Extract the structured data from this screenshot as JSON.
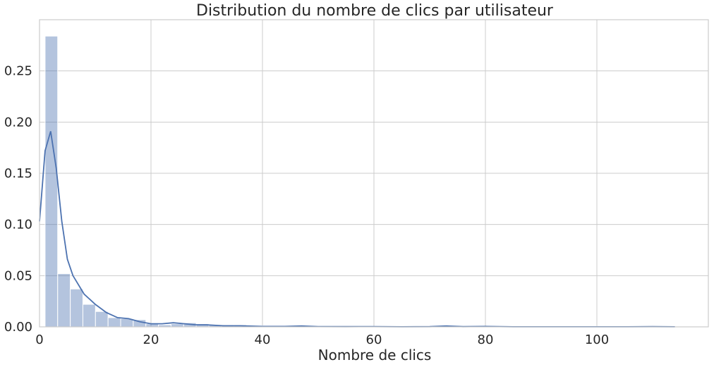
{
  "chart_data": {
    "type": "bar",
    "title": "Distribution du nombre de clics par utilisateur",
    "xlabel": "Nombre de clics",
    "ylabel": "",
    "xlim": [
      0,
      120
    ],
    "ylim": [
      0,
      0.3
    ],
    "x_ticks": [
      "0",
      "20",
      "40",
      "60",
      "80",
      "100"
    ],
    "y_ticks": [
      "0.00",
      "0.05",
      "0.10",
      "0.15",
      "0.20",
      "0.25"
    ],
    "grid": true,
    "legend": "none",
    "bar_color": "#4C72B0",
    "line_color": "#4C72B0",
    "histogram": {
      "bin_start": 1,
      "bin_width": 2.26,
      "values": [
        0.284,
        0.052,
        0.037,
        0.022,
        0.015,
        0.009,
        0.008,
        0.007,
        0.003,
        0.002,
        0.003,
        0.004,
        0.003,
        0.002,
        0.002,
        0.002,
        0.001,
        0.001,
        0.001,
        0.001,
        0.001,
        0.001,
        0.001,
        0.001,
        0.0005,
        0.0005,
        0.0005,
        0.0005,
        0.0005,
        0.0005,
        0.0005,
        0.0005,
        0.0005,
        0.001,
        0.0005,
        0.0005,
        0.0005,
        0.0005,
        0.0005,
        0.0005,
        0.0005,
        0.0005,
        0.0005,
        0.0005,
        0.0005,
        0.0005,
        0.0005,
        0.0005,
        0.0005,
        0.0005
      ]
    },
    "kde": {
      "x": [
        0,
        1,
        2,
        3,
        4,
        5,
        6,
        8,
        10,
        12,
        14,
        16,
        18,
        20,
        22,
        24,
        26,
        28,
        30,
        33,
        36,
        40,
        44,
        47,
        50,
        55,
        60,
        65,
        70,
        73,
        76,
        80,
        85,
        90,
        95,
        100,
        105,
        110,
        114
      ],
      "y": [
        0.103,
        0.172,
        0.191,
        0.155,
        0.103,
        0.066,
        0.05,
        0.032,
        0.022,
        0.014,
        0.009,
        0.008,
        0.005,
        0.003,
        0.003,
        0.004,
        0.003,
        0.002,
        0.002,
        0.001,
        0.001,
        0.0004,
        0.0004,
        0.0008,
        0.0003,
        0.0002,
        0.0003,
        0.0001,
        0.0002,
        0.0008,
        0.0002,
        0.0004,
        0.0001,
        0.0001,
        0.0001,
        0.0001,
        0.0001,
        0.0002,
        0.0001
      ]
    }
  }
}
